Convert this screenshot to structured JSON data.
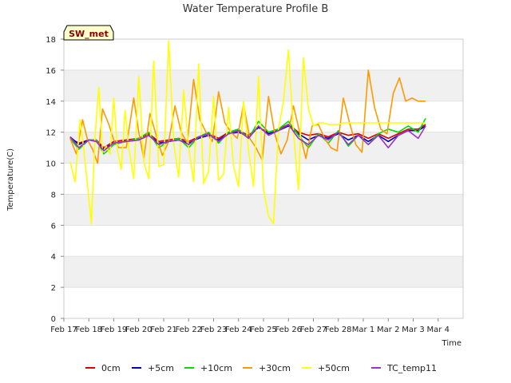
{
  "chart_data": {
    "type": "line",
    "title": "Water Temperature Profile B",
    "xlabel": "Time",
    "ylabel": "Temperature(C)",
    "site_label": "SW_met",
    "xlim": [
      0,
      16
    ],
    "ylim": [
      0,
      18
    ],
    "y_ticks": [
      0,
      2,
      4,
      6,
      8,
      10,
      12,
      14,
      16,
      18
    ],
    "x_tick_labels": [
      "Feb 17",
      "Feb 18",
      "Feb 19",
      "Feb 20",
      "Feb 21",
      "Feb 22",
      "Feb 23",
      "Feb 24",
      "Feb 25",
      "Feb 26",
      "Feb 27",
      "Feb 28",
      "Mar 1",
      "Mar 2",
      "Mar 3",
      "Mar 4"
    ],
    "grid": "horizontal bands",
    "band_color": "#f0f0f0",
    "legend_position": "bottom",
    "series": [
      {
        "name": "0cm",
        "color": "#dd0000",
        "x": [
          0.25,
          0.6,
          1.0,
          1.3,
          1.6,
          2.0,
          2.5,
          3.0,
          3.4,
          3.8,
          4.2,
          4.6,
          5.0,
          5.4,
          5.8,
          6.2,
          6.6,
          7.0,
          7.4,
          7.8,
          8.2,
          8.6,
          9.0,
          9.4,
          9.8,
          10.2,
          10.6,
          11.0,
          11.4,
          11.8,
          12.2,
          12.6,
          13.0,
          13.4,
          13.8,
          14.2,
          14.5
        ],
        "y": [
          11.6,
          11.3,
          11.5,
          11.5,
          11.0,
          11.4,
          11.5,
          11.6,
          11.9,
          11.4,
          11.5,
          11.6,
          11.4,
          11.7,
          11.9,
          11.6,
          12.0,
          12.1,
          11.8,
          12.3,
          12.0,
          12.2,
          12.5,
          12.0,
          11.8,
          11.9,
          11.7,
          12.0,
          11.8,
          11.9,
          11.6,
          11.9,
          11.6,
          11.9,
          12.2,
          12.2,
          12.5
        ]
      },
      {
        "name": "+5cm",
        "color": "#0000bb",
        "x": [
          0.25,
          0.6,
          1.0,
          1.3,
          1.6,
          2.0,
          2.5,
          3.0,
          3.4,
          3.8,
          4.2,
          4.6,
          5.0,
          5.4,
          5.8,
          6.2,
          6.6,
          7.0,
          7.4,
          7.8,
          8.2,
          8.6,
          9.0,
          9.4,
          9.8,
          10.2,
          10.6,
          11.0,
          11.4,
          11.8,
          12.2,
          12.6,
          13.0,
          13.4,
          13.8,
          14.2,
          14.5
        ],
        "y": [
          11.7,
          11.2,
          11.5,
          11.4,
          10.9,
          11.3,
          11.4,
          11.5,
          11.8,
          11.3,
          11.4,
          11.5,
          11.3,
          11.6,
          11.8,
          11.5,
          11.9,
          12.0,
          11.7,
          12.3,
          11.9,
          12.1,
          12.4,
          11.9,
          11.5,
          11.8,
          11.6,
          11.9,
          11.5,
          11.8,
          11.4,
          11.8,
          11.4,
          11.8,
          12.1,
          12.1,
          12.4
        ]
      },
      {
        "name": "+10cm",
        "color": "#00dd00",
        "x": [
          0.25,
          0.6,
          1.0,
          1.3,
          1.6,
          2.0,
          2.5,
          3.0,
          3.4,
          3.8,
          4.2,
          4.6,
          5.0,
          5.4,
          5.8,
          6.2,
          6.6,
          7.0,
          7.4,
          7.8,
          8.2,
          8.6,
          9.0,
          9.4,
          9.8,
          10.2,
          10.6,
          11.0,
          11.4,
          11.8,
          12.2,
          12.6,
          13.0,
          13.4,
          13.8,
          14.2,
          14.5
        ],
        "y": [
          11.6,
          10.9,
          11.5,
          11.5,
          10.6,
          11.2,
          11.4,
          11.6,
          12.0,
          11.0,
          11.4,
          11.6,
          11.0,
          11.7,
          12.0,
          11.3,
          12.0,
          12.2,
          11.6,
          12.7,
          12.0,
          12.2,
          12.7,
          11.8,
          11.0,
          11.9,
          11.3,
          12.1,
          11.1,
          11.8,
          11.2,
          11.9,
          12.2,
          12.0,
          12.4,
          12.0,
          12.9
        ]
      },
      {
        "name": "+30cm",
        "color": "#ff9900",
        "x": [
          0.25,
          0.5,
          0.75,
          0.95,
          1.15,
          1.35,
          1.55,
          1.8,
          2.0,
          2.2,
          2.5,
          2.8,
          3.0,
          3.2,
          3.45,
          3.7,
          3.95,
          4.2,
          4.45,
          4.7,
          4.95,
          5.2,
          5.45,
          5.7,
          5.95,
          6.2,
          6.45,
          6.7,
          6.95,
          7.2,
          7.45,
          7.7,
          7.95,
          8.2,
          8.45,
          8.7,
          8.95,
          9.2,
          9.45,
          9.7,
          9.95,
          10.2,
          10.45,
          10.7,
          10.95,
          11.2,
          11.45,
          11.7,
          11.95,
          12.2,
          12.45,
          12.7,
          12.95,
          13.2,
          13.45,
          13.7,
          13.95,
          14.2,
          14.4,
          14.5
        ],
        "y": [
          11.6,
          10.6,
          12.8,
          11.5,
          10.9,
          10.0,
          13.5,
          12.5,
          11.5,
          11.0,
          11.0,
          14.2,
          12.0,
          10.3,
          13.2,
          11.8,
          10.5,
          11.4,
          13.7,
          12.0,
          11.3,
          15.4,
          12.8,
          12.0,
          11.4,
          14.6,
          12.6,
          12.0,
          11.6,
          13.8,
          11.6,
          11.0,
          10.2,
          14.3,
          11.9,
          10.6,
          11.5,
          13.7,
          12.0,
          10.3,
          12.4,
          12.5,
          11.6,
          11.0,
          10.8,
          14.2,
          12.6,
          11.2,
          10.7,
          16.0,
          13.6,
          12.2,
          11.9,
          14.5,
          15.5,
          14.0,
          14.2,
          14.0,
          14.0,
          14.0
        ]
      },
      {
        "name": "+50cm",
        "color": "#ffff00",
        "x": [
          0.25,
          0.45,
          0.65,
          0.8,
          0.95,
          1.1,
          1.25,
          1.4,
          1.55,
          1.7,
          1.85,
          2.0,
          2.15,
          2.3,
          2.45,
          2.6,
          2.8,
          3.0,
          3.2,
          3.4,
          3.6,
          3.8,
          4.0,
          4.2,
          4.4,
          4.6,
          4.8,
          5.0,
          5.2,
          5.4,
          5.6,
          5.8,
          6.0,
          6.2,
          6.4,
          6.6,
          6.8,
          7.0,
          7.2,
          7.4,
          7.6,
          7.8,
          8.0,
          8.2,
          8.4,
          8.6,
          8.8,
          9.0,
          9.2,
          9.4,
          9.6,
          9.8,
          10.0,
          10.2,
          10.4,
          10.6,
          10.8,
          11.0,
          11.2,
          11.4,
          11.6,
          11.8,
          12.0,
          12.2,
          12.4,
          12.6,
          12.8,
          13.0,
          13.2,
          13.4,
          13.6,
          13.8,
          14.0,
          14.2,
          14.4,
          14.5
        ],
        "y": [
          10.1,
          8.8,
          12.8,
          10.9,
          8.5,
          6.1,
          11.8,
          14.9,
          10.7,
          11.1,
          10.6,
          14.2,
          10.8,
          9.6,
          13.4,
          11.0,
          9.0,
          15.6,
          10.1,
          9.0,
          16.6,
          9.8,
          9.9,
          17.9,
          11.3,
          9.1,
          14.7,
          11.0,
          8.8,
          16.4,
          8.7,
          9.5,
          14.3,
          8.9,
          9.3,
          13.6,
          9.8,
          8.5,
          14.0,
          10.8,
          8.5,
          15.6,
          8.3,
          6.6,
          6.1,
          12.2,
          14.0,
          17.3,
          12.0,
          8.3,
          16.8,
          13.5,
          12.4,
          12.6,
          12.6,
          12.5,
          12.5,
          12.5,
          12.6,
          12.6,
          12.6,
          12.6,
          12.6,
          12.6,
          12.6,
          12.6,
          12.6,
          12.6,
          12.6,
          12.6,
          12.6,
          12.6,
          12.6,
          12.6,
          12.6,
          12.6
        ]
      },
      {
        "name": "TC_temp11",
        "color": "#9933cc",
        "x": [
          0.25,
          0.6,
          1.0,
          1.3,
          1.6,
          2.0,
          2.5,
          3.0,
          3.4,
          3.8,
          4.2,
          4.6,
          5.0,
          5.4,
          5.8,
          6.2,
          6.6,
          7.0,
          7.4,
          7.8,
          8.2,
          8.6,
          9.0,
          9.4,
          9.8,
          10.2,
          10.6,
          11.0,
          11.4,
          11.8,
          12.2,
          12.6,
          13.0,
          13.4,
          13.8,
          14.2,
          14.5
        ],
        "y": [
          11.7,
          11.0,
          11.5,
          11.4,
          10.8,
          11.3,
          11.4,
          11.5,
          11.8,
          11.2,
          11.4,
          11.5,
          11.2,
          11.7,
          11.9,
          11.4,
          11.9,
          12.1,
          11.6,
          12.4,
          11.8,
          12.1,
          12.5,
          11.6,
          11.2,
          11.8,
          11.5,
          12.0,
          11.2,
          11.8,
          11.2,
          11.8,
          11.0,
          11.8,
          12.1,
          11.6,
          12.4
        ]
      }
    ]
  }
}
